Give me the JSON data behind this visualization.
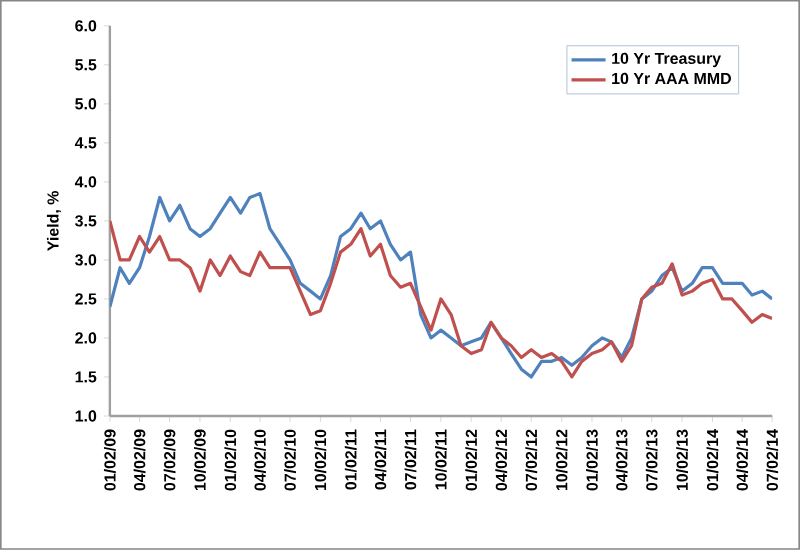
{
  "chart_data": {
    "type": "line",
    "ylabel": "Yield, %",
    "x": [
      "2009-01-02",
      "2009-02-02",
      "2009-03-02",
      "2009-04-02",
      "2009-05-02",
      "2009-06-02",
      "2009-07-02",
      "2009-08-02",
      "2009-09-02",
      "2009-10-02",
      "2009-11-02",
      "2009-12-02",
      "2010-01-02",
      "2010-02-02",
      "2010-03-02",
      "2010-04-02",
      "2010-05-02",
      "2010-06-02",
      "2010-07-02",
      "2010-08-02",
      "2010-09-02",
      "2010-10-02",
      "2010-11-02",
      "2010-12-02",
      "2011-01-02",
      "2011-02-02",
      "2011-03-02",
      "2011-04-02",
      "2011-05-02",
      "2011-06-02",
      "2011-07-02",
      "2011-08-02",
      "2011-09-02",
      "2011-10-02",
      "2011-11-02",
      "2011-12-02",
      "2012-01-02",
      "2012-02-02",
      "2012-03-02",
      "2012-04-02",
      "2012-05-02",
      "2012-06-02",
      "2012-07-02",
      "2012-08-02",
      "2012-09-02",
      "2012-10-02",
      "2012-11-02",
      "2012-12-02",
      "2013-01-02",
      "2013-02-02",
      "2013-03-02",
      "2013-04-02",
      "2013-05-02",
      "2013-06-02",
      "2013-07-02",
      "2013-08-02",
      "2013-09-02",
      "2013-10-02",
      "2013-11-02",
      "2013-12-02",
      "2014-01-02",
      "2014-02-02",
      "2014-03-02",
      "2014-04-02",
      "2014-05-02",
      "2014-06-02",
      "2014-07-02"
    ],
    "series": [
      {
        "name": "10 Yr Treasury",
        "color": "#4f81bd",
        "values": [
          2.4,
          2.9,
          2.7,
          2.9,
          3.3,
          3.8,
          3.5,
          3.7,
          3.4,
          3.3,
          3.4,
          3.6,
          3.8,
          3.6,
          3.8,
          3.85,
          3.4,
          3.2,
          3.0,
          2.7,
          2.6,
          2.5,
          2.8,
          3.3,
          3.4,
          3.6,
          3.4,
          3.5,
          3.2,
          3.0,
          3.1,
          2.3,
          2.0,
          2.1,
          2.0,
          1.9,
          1.95,
          2.0,
          2.2,
          2.0,
          1.8,
          1.6,
          1.5,
          1.7,
          1.7,
          1.75,
          1.65,
          1.75,
          1.9,
          2.0,
          1.95,
          1.75,
          2.0,
          2.5,
          2.6,
          2.8,
          2.9,
          2.6,
          2.7,
          2.9,
          2.9,
          2.7,
          2.7,
          2.7,
          2.55,
          2.6,
          2.5
        ]
      },
      {
        "name": "10 Yr AAA MMD",
        "color": "#c0504d",
        "values": [
          3.5,
          3.0,
          3.0,
          3.3,
          3.1,
          3.3,
          3.0,
          3.0,
          2.9,
          2.6,
          3.0,
          2.8,
          3.05,
          2.85,
          2.8,
          3.1,
          2.9,
          2.9,
          2.9,
          2.6,
          2.3,
          2.35,
          2.7,
          3.1,
          3.2,
          3.4,
          3.05,
          3.2,
          2.8,
          2.65,
          2.7,
          2.4,
          2.1,
          2.5,
          2.3,
          1.9,
          1.8,
          1.85,
          2.2,
          2.0,
          1.9,
          1.75,
          1.85,
          1.75,
          1.8,
          1.7,
          1.5,
          1.7,
          1.8,
          1.85,
          1.95,
          1.7,
          1.9,
          2.5,
          2.65,
          2.7,
          2.95,
          2.55,
          2.6,
          2.7,
          2.75,
          2.5,
          2.5,
          2.35,
          2.2,
          2.3,
          2.25
        ]
      }
    ],
    "xlim": [
      "2009-01-02",
      "2014-07-02"
    ],
    "xticks": [
      {
        "value": "2009-01-02",
        "label": "01/02/09"
      },
      {
        "value": "2009-04-02",
        "label": "04/02/09"
      },
      {
        "value": "2009-07-02",
        "label": "07/02/09"
      },
      {
        "value": "2009-10-02",
        "label": "10/02/09"
      },
      {
        "value": "2010-01-02",
        "label": "01/02/10"
      },
      {
        "value": "2010-04-02",
        "label": "04/02/10"
      },
      {
        "value": "2010-07-02",
        "label": "07/02/10"
      },
      {
        "value": "2010-10-02",
        "label": "10/02/10"
      },
      {
        "value": "2011-01-02",
        "label": "01/02/11"
      },
      {
        "value": "2011-04-02",
        "label": "04/02/11"
      },
      {
        "value": "2011-07-02",
        "label": "07/02/11"
      },
      {
        "value": "2011-10-02",
        "label": "10/02/11"
      },
      {
        "value": "2012-01-02",
        "label": "01/02/12"
      },
      {
        "value": "2012-04-02",
        "label": "04/02/12"
      },
      {
        "value": "2012-07-02",
        "label": "07/02/12"
      },
      {
        "value": "2012-10-02",
        "label": "10/02/12"
      },
      {
        "value": "2013-01-02",
        "label": "01/02/13"
      },
      {
        "value": "2013-04-02",
        "label": "04/02/13"
      },
      {
        "value": "2013-07-02",
        "label": "07/02/13"
      },
      {
        "value": "2013-10-02",
        "label": "10/02/13"
      },
      {
        "value": "2014-01-02",
        "label": "01/02/14"
      },
      {
        "value": "2014-04-02",
        "label": "04/02/14"
      },
      {
        "value": "2014-07-02",
        "label": "07/02/14"
      }
    ],
    "ylim": [
      1.0,
      6.0
    ],
    "yticks": [
      {
        "value": 1.0,
        "label": "1.0"
      },
      {
        "value": 1.5,
        "label": "1.5"
      },
      {
        "value": 2.0,
        "label": "2.0"
      },
      {
        "value": 2.5,
        "label": "2.5"
      },
      {
        "value": 3.0,
        "label": "3.0"
      },
      {
        "value": 3.5,
        "label": "3.5"
      },
      {
        "value": 4.0,
        "label": "4.0"
      },
      {
        "value": 4.5,
        "label": "4.5"
      },
      {
        "value": 5.0,
        "label": "5.0"
      },
      {
        "value": 5.5,
        "label": "5.5"
      },
      {
        "value": 6.0,
        "label": "6.0"
      }
    ],
    "legend": "top right",
    "grid": false,
    "marker": "none",
    "line_style": "solid"
  }
}
